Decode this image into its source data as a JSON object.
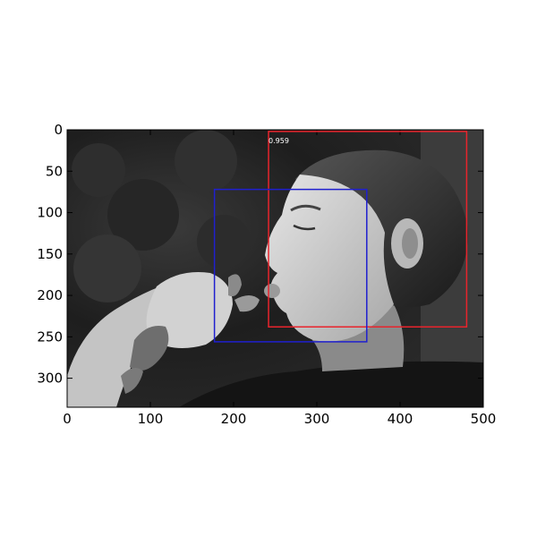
{
  "chart_data": {
    "type": "image-detection",
    "image_description": "grayscale photo of a young boy eating, face in profile",
    "xlim": [
      0,
      500
    ],
    "ylim": [
      335,
      0
    ],
    "x_ticks": [
      0,
      100,
      200,
      300,
      400,
      500
    ],
    "x_tick_labels": [
      "0",
      "100",
      "200",
      "300",
      "400",
      "500"
    ],
    "y_ticks": [
      0,
      50,
      100,
      150,
      200,
      250,
      300
    ],
    "y_tick_labels": [
      "0",
      "50",
      "100",
      "150",
      "200",
      "250",
      "300"
    ],
    "boxes": [
      {
        "name": "red-detection-box",
        "color": "#e8242c",
        "x_min": 242,
        "y_min": 2,
        "x_max": 480,
        "y_max": 238,
        "score": "0.959"
      },
      {
        "name": "blue-detection-box",
        "color": "#1f1fcf",
        "x_min": 177,
        "y_min": 72,
        "x_max": 360,
        "y_max": 256,
        "score": ""
      }
    ]
  }
}
